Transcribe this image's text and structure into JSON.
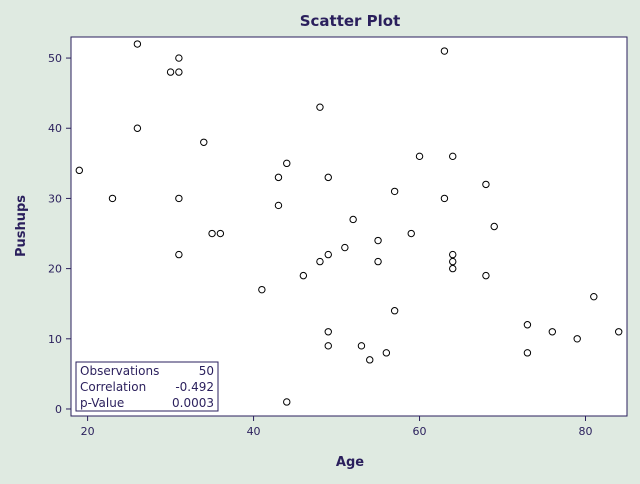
{
  "chart_data": {
    "type": "scatter",
    "title": "Scatter Plot",
    "xlabel": "Age",
    "ylabel": "Pushups",
    "xlim": [
      18,
      85
    ],
    "ylim": [
      -1,
      53
    ],
    "xticks": [
      20,
      40,
      60,
      80
    ],
    "yticks": [
      0,
      10,
      20,
      30,
      40,
      50
    ],
    "grid": false,
    "marker": "open-circle",
    "colors": {
      "background": "#dfeae1",
      "plot_area": "#ffffff",
      "frame": "#2a1f5c",
      "text": "#2a1f5c",
      "marker": "#000000"
    },
    "points": [
      {
        "x": 19,
        "y": 34
      },
      {
        "x": 23,
        "y": 30
      },
      {
        "x": 26,
        "y": 52
      },
      {
        "x": 26,
        "y": 40
      },
      {
        "x": 30,
        "y": 48
      },
      {
        "x": 31,
        "y": 50
      },
      {
        "x": 31,
        "y": 48
      },
      {
        "x": 31,
        "y": 30
      },
      {
        "x": 31,
        "y": 22
      },
      {
        "x": 34,
        "y": 38
      },
      {
        "x": 35,
        "y": 25
      },
      {
        "x": 36,
        "y": 25
      },
      {
        "x": 41,
        "y": 17
      },
      {
        "x": 43,
        "y": 33
      },
      {
        "x": 43,
        "y": 29
      },
      {
        "x": 44,
        "y": 35
      },
      {
        "x": 44,
        "y": 1
      },
      {
        "x": 46,
        "y": 19
      },
      {
        "x": 48,
        "y": 43
      },
      {
        "x": 48,
        "y": 21
      },
      {
        "x": 49,
        "y": 33
      },
      {
        "x": 49,
        "y": 22
      },
      {
        "x": 49,
        "y": 11
      },
      {
        "x": 49,
        "y": 9
      },
      {
        "x": 51,
        "y": 23
      },
      {
        "x": 52,
        "y": 27
      },
      {
        "x": 53,
        "y": 9
      },
      {
        "x": 54,
        "y": 7
      },
      {
        "x": 55,
        "y": 24
      },
      {
        "x": 55,
        "y": 21
      },
      {
        "x": 56,
        "y": 8
      },
      {
        "x": 57,
        "y": 31
      },
      {
        "x": 57,
        "y": 14
      },
      {
        "x": 59,
        "y": 25
      },
      {
        "x": 60,
        "y": 36
      },
      {
        "x": 63,
        "y": 51
      },
      {
        "x": 63,
        "y": 30
      },
      {
        "x": 64,
        "y": 36
      },
      {
        "x": 64,
        "y": 22
      },
      {
        "x": 64,
        "y": 21
      },
      {
        "x": 64,
        "y": 20
      },
      {
        "x": 68,
        "y": 32
      },
      {
        "x": 68,
        "y": 19
      },
      {
        "x": 69,
        "y": 26
      },
      {
        "x": 73,
        "y": 12
      },
      {
        "x": 73,
        "y": 8
      },
      {
        "x": 76,
        "y": 11
      },
      {
        "x": 79,
        "y": 10
      },
      {
        "x": 81,
        "y": 16
      },
      {
        "x": 84,
        "y": 11
      }
    ],
    "stats": [
      {
        "label": "Observations",
        "value": "50"
      },
      {
        "label": "Correlation",
        "value": "-0.492"
      },
      {
        "label": "p-Value",
        "value": "0.0003"
      }
    ],
    "stats_box_position": "bottom-left"
  }
}
